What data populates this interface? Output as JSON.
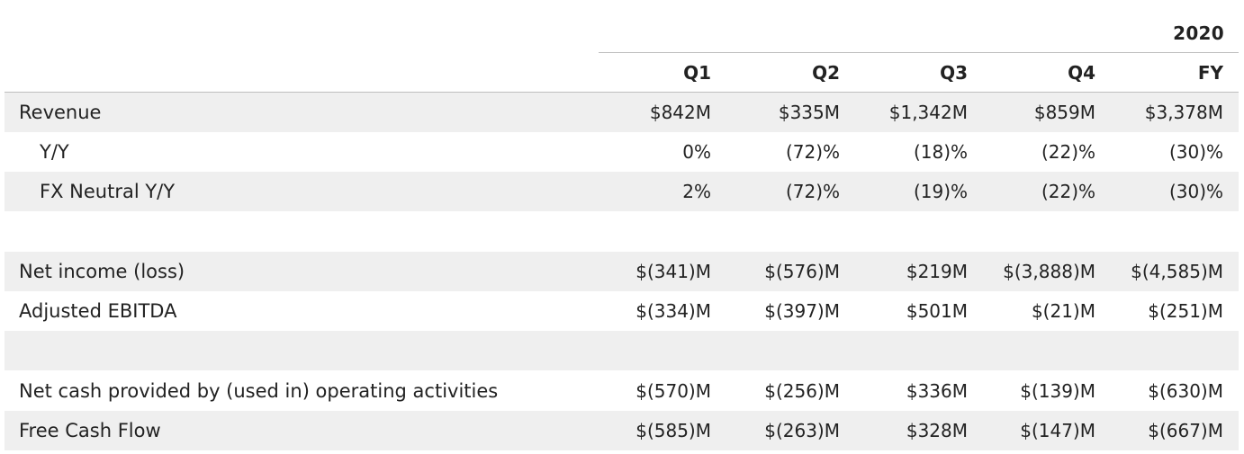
{
  "table": {
    "year": "2020",
    "columns": [
      "Q1",
      "Q2",
      "Q3",
      "Q4",
      "FY"
    ],
    "rows": [
      {
        "label": "Revenue",
        "values": [
          "$842M",
          "$335M",
          "$1,342M",
          "$859M",
          "$3,378M"
        ]
      },
      {
        "label": "Y/Y",
        "values": [
          "0%",
          "(72)%",
          "(18)%",
          "(22)%",
          "(30)%"
        ]
      },
      {
        "label": "FX Neutral Y/Y",
        "values": [
          "2%",
          "(72)%",
          "(19)%",
          "(22)%",
          "(30)%"
        ]
      },
      {
        "label": "",
        "values": [
          "",
          "",
          "",
          "",
          ""
        ]
      },
      {
        "label": "Net income (loss)",
        "values": [
          "$(341)M",
          "$(576)M",
          "$219M",
          "$(3,888)M",
          "$(4,585)M"
        ]
      },
      {
        "label": "Adjusted EBITDA",
        "values": [
          "$(334)M",
          "$(397)M",
          "$501M",
          "$(21)M",
          "$(251)M"
        ]
      },
      {
        "label": "",
        "values": [
          "",
          "",
          "",
          "",
          ""
        ]
      },
      {
        "label": "Net cash provided by (used in) operating activities",
        "values": [
          "$(570)M",
          "$(256)M",
          "$336M",
          "$(139)M",
          "$(630)M"
        ]
      },
      {
        "label": "Free Cash Flow",
        "values": [
          "$(585)M",
          "$(263)M",
          "$328M",
          "$(147)M",
          "$(667)M"
        ]
      }
    ]
  }
}
